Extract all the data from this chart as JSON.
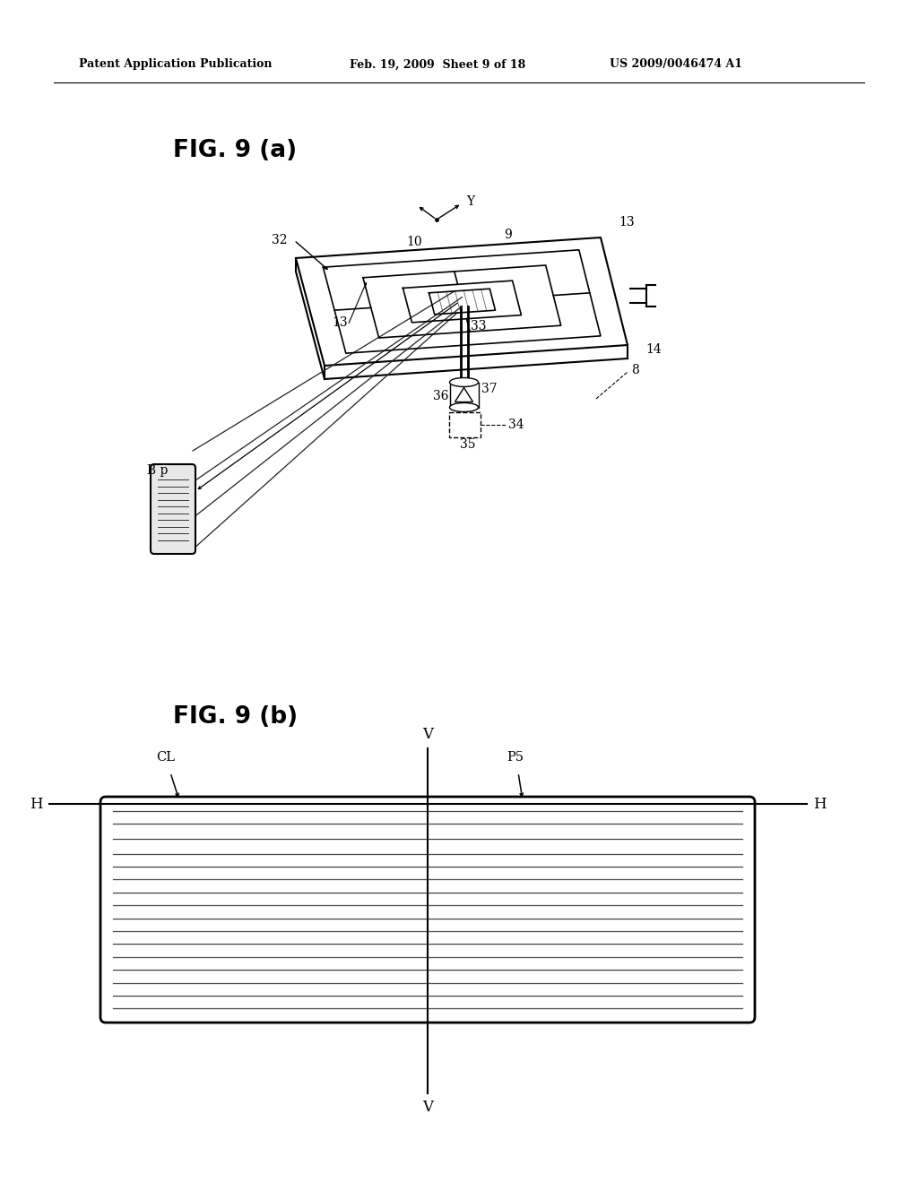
{
  "bg_color": "#ffffff",
  "header_left": "Patent Application Publication",
  "header_mid": "Feb. 19, 2009  Sheet 9 of 18",
  "header_right": "US 2009/0046474 A1",
  "fig_a_label": "FIG. 9 (a)",
  "fig_b_label": "FIG. 9 (b)",
  "line_color": "#000000"
}
